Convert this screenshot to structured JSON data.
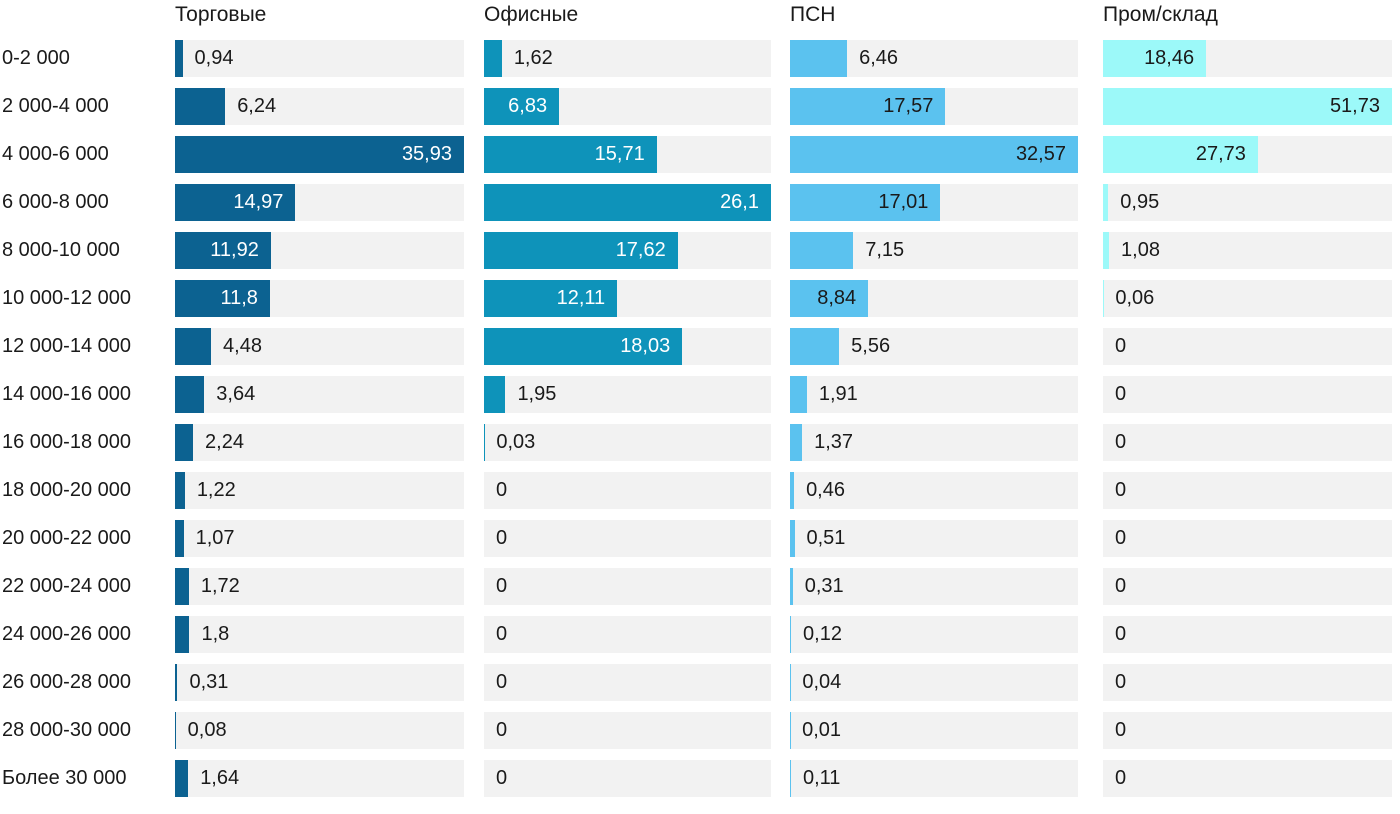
{
  "chart_data": {
    "type": "bar",
    "orientation": "horizontal",
    "title": "",
    "xlabel": "",
    "ylabel": "",
    "grid": false,
    "legend_position": "column-headers-top",
    "scaling_note": "each column scaled independently so its max value fills the track width",
    "track_color": "#f2f2f2",
    "label_text_color": "#1a1a1a",
    "categories": [
      "0-2 000",
      "2 000-4 000",
      "4 000-6 000",
      "6 000-8 000",
      "8 000-10 000",
      "10 000-12 000",
      "12 000-14 000",
      "14 000-16 000",
      "16 000-18 000",
      "18 000-20 000",
      "20 000-22 000",
      "22 000-24 000",
      "24 000-26 000",
      "26 000-28 000",
      "28 000-30 000",
      "Более 30 000"
    ],
    "series": [
      {
        "name": "Торговые",
        "color": "#0c6291",
        "inside_text_color": "#ffffff",
        "values": [
          0.94,
          6.24,
          35.93,
          14.97,
          11.92,
          11.8,
          4.48,
          3.64,
          2.24,
          1.22,
          1.07,
          1.72,
          1.8,
          0.31,
          0.08,
          1.64
        ],
        "labels": [
          "0,94",
          "6,24",
          "35,93",
          "14,97",
          "11,92",
          "11,8",
          "4,48",
          "3,64",
          "2,24",
          "1,22",
          "1,07",
          "1,72",
          "1,8",
          "0,31",
          "0,08",
          "1,64"
        ]
      },
      {
        "name": "Офисные",
        "color": "#0e93ba",
        "inside_text_color": "#ffffff",
        "values": [
          1.62,
          6.83,
          15.71,
          26.1,
          17.62,
          12.11,
          18.03,
          1.95,
          0.03,
          0,
          0,
          0,
          0,
          0,
          0,
          0
        ],
        "labels": [
          "1,62",
          "6,83",
          "15,71",
          "26,1",
          "17,62",
          "12,11",
          "18,03",
          "1,95",
          "0,03",
          "0",
          "0",
          "0",
          "0",
          "0",
          "0",
          "0"
        ]
      },
      {
        "name": "ПСН",
        "color": "#5bc2ef",
        "inside_text_color": "#1a1a1a",
        "values": [
          6.46,
          17.57,
          32.57,
          17.01,
          7.15,
          8.84,
          5.56,
          1.91,
          1.37,
          0.46,
          0.51,
          0.31,
          0.12,
          0.04,
          0.01,
          0.11
        ],
        "labels": [
          "6,46",
          "17,57",
          "32,57",
          "17,01",
          "7,15",
          "8,84",
          "5,56",
          "1,91",
          "1,37",
          "0,46",
          "0,51",
          "0,31",
          "0,12",
          "0,04",
          "0,01",
          "0,11"
        ]
      },
      {
        "name": "Пром/склад",
        "color": "#9cf9f9",
        "inside_text_color": "#1a1a1a",
        "values": [
          18.46,
          51.73,
          27.73,
          0.95,
          1.08,
          0.06,
          0,
          0,
          0,
          0,
          0,
          0,
          0,
          0,
          0,
          0
        ],
        "labels": [
          "18,46",
          "51,73",
          "27,73",
          "0,95",
          "1,08",
          "0,06",
          "0",
          "0",
          "0",
          "0",
          "0",
          "0",
          "0",
          "0",
          "0",
          "0"
        ]
      }
    ]
  }
}
